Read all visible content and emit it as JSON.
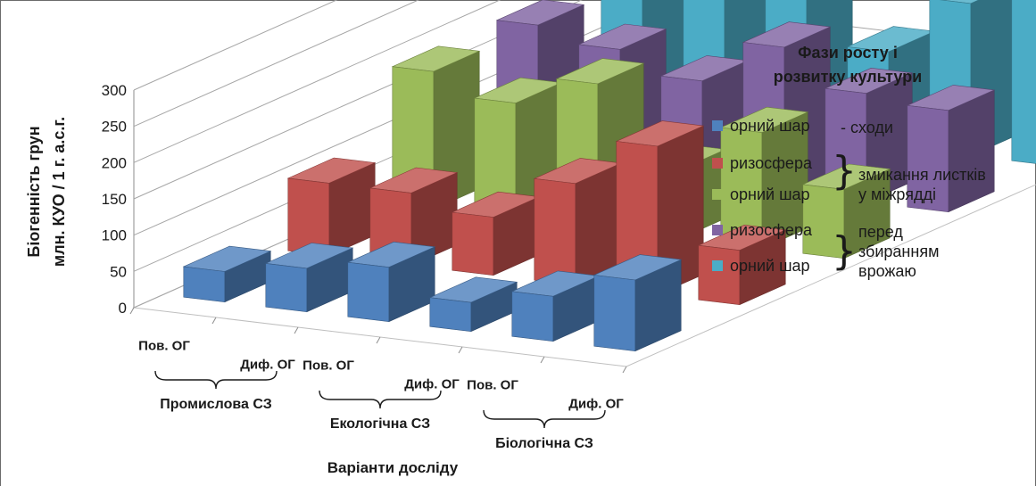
{
  "chart_data": {
    "type": "bar",
    "subtype": "3d-clustered-column",
    "ylabel_line1": "Біогенність грун",
    "ylabel_line2": "млн. КУО / 1 г. а.с.г.",
    "xlabel": "Варіанти досліду",
    "ylim": [
      0,
      300
    ],
    "yticks": [
      0,
      50,
      100,
      150,
      200,
      250,
      300
    ],
    "grid": true,
    "legend_position": "right",
    "legend_title_line1": "Фази росту і",
    "legend_title_line2": "розвитку культури",
    "categories": [
      "Пов. ОГ",
      "Диф. ОГ",
      "Пов. ОГ",
      "Диф. ОГ",
      "Пов. ОГ",
      "Диф. ОГ"
    ],
    "groups": [
      {
        "label": "Промислова СЗ",
        "categories": [
          0,
          1
        ]
      },
      {
        "label": "Екологічна СЗ",
        "categories": [
          2,
          3
        ]
      },
      {
        "label": "Біологічна СЗ",
        "categories": [
          4,
          5
        ]
      }
    ],
    "series": [
      {
        "name": "орний шар",
        "color": "#4f81bd",
        "values": [
          42,
          60,
          75,
          40,
          62,
          98
        ]
      },
      {
        "name": "ризосфера",
        "color": "#c0504d",
        "values": [
          100,
          100,
          80,
          140,
          205,
          75
        ]
      },
      {
        "name": "орний шар",
        "color": "#9bbb59",
        "values": [
          190,
          160,
          200,
          95,
          160,
          95
        ]
      },
      {
        "name": "ризосфера",
        "color": "#8064a2",
        "values": [
          190,
          170,
          140,
          200,
          150,
          140
        ]
      },
      {
        "name": "орний шар",
        "color": "#4bacc6",
        "values": [
          210,
          210,
          200,
          130,
          210,
          240
        ]
      }
    ],
    "phases": [
      "- сходи",
      "змикання листків у міжрядді",
      "перед збиранням врожаю"
    ]
  },
  "legend": {
    "phase_1": "- сходи",
    "phase_2_line1": "змикання листків",
    "phase_2_line2": "у міжрядді",
    "phase_3_line1": "перед",
    "phase_3_line2": "збиранням",
    "phase_3_line3": "врожаю"
  }
}
